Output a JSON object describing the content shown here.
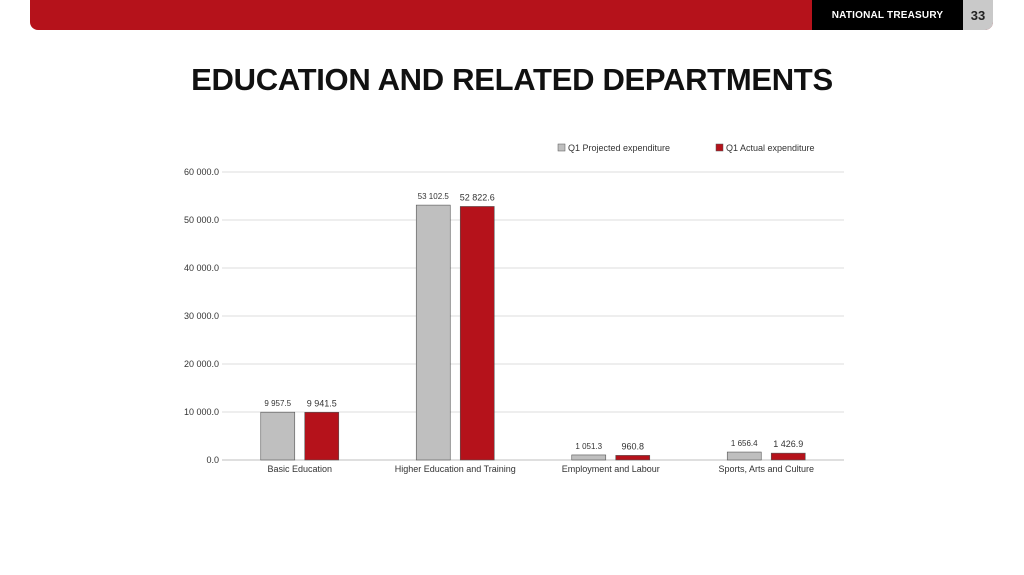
{
  "header": {
    "brand": "NATIONAL TREASURY",
    "page_number": "33"
  },
  "title": "EDUCATION AND RELATED DEPARTMENTS",
  "colors": {
    "accent": "#b5121b",
    "projected": "#bfbfbf",
    "actual": "#b5121b"
  },
  "chart_data": {
    "type": "bar",
    "categories": [
      "Basic Education",
      "Higher Education and Training",
      "Employment and Labour",
      "Sports, Arts and Culture"
    ],
    "series": [
      {
        "name": "Q1 Projected expenditure",
        "values": [
          9957.5,
          53102.5,
          1051.3,
          1656.4
        ],
        "labels": [
          "9 957.5",
          "53 102.5",
          "1 051.3",
          "1 656.4"
        ]
      },
      {
        "name": "Q1 Actual expenditure",
        "values": [
          9941.5,
          52822.6,
          960.8,
          1426.9
        ],
        "labels": [
          "9 941.5",
          "52 822.6",
          "960.8",
          "1 426.9"
        ]
      }
    ],
    "ylim": [
      0,
      60000
    ],
    "yticks": [
      0,
      10000,
      20000,
      30000,
      40000,
      50000,
      60000
    ],
    "ytick_labels": [
      "0.0",
      "10 000.0",
      "20 000.0",
      "30 000.0",
      "40 000.0",
      "50 000.0",
      "60 000.0"
    ],
    "grid": true,
    "legend": "top-right"
  }
}
